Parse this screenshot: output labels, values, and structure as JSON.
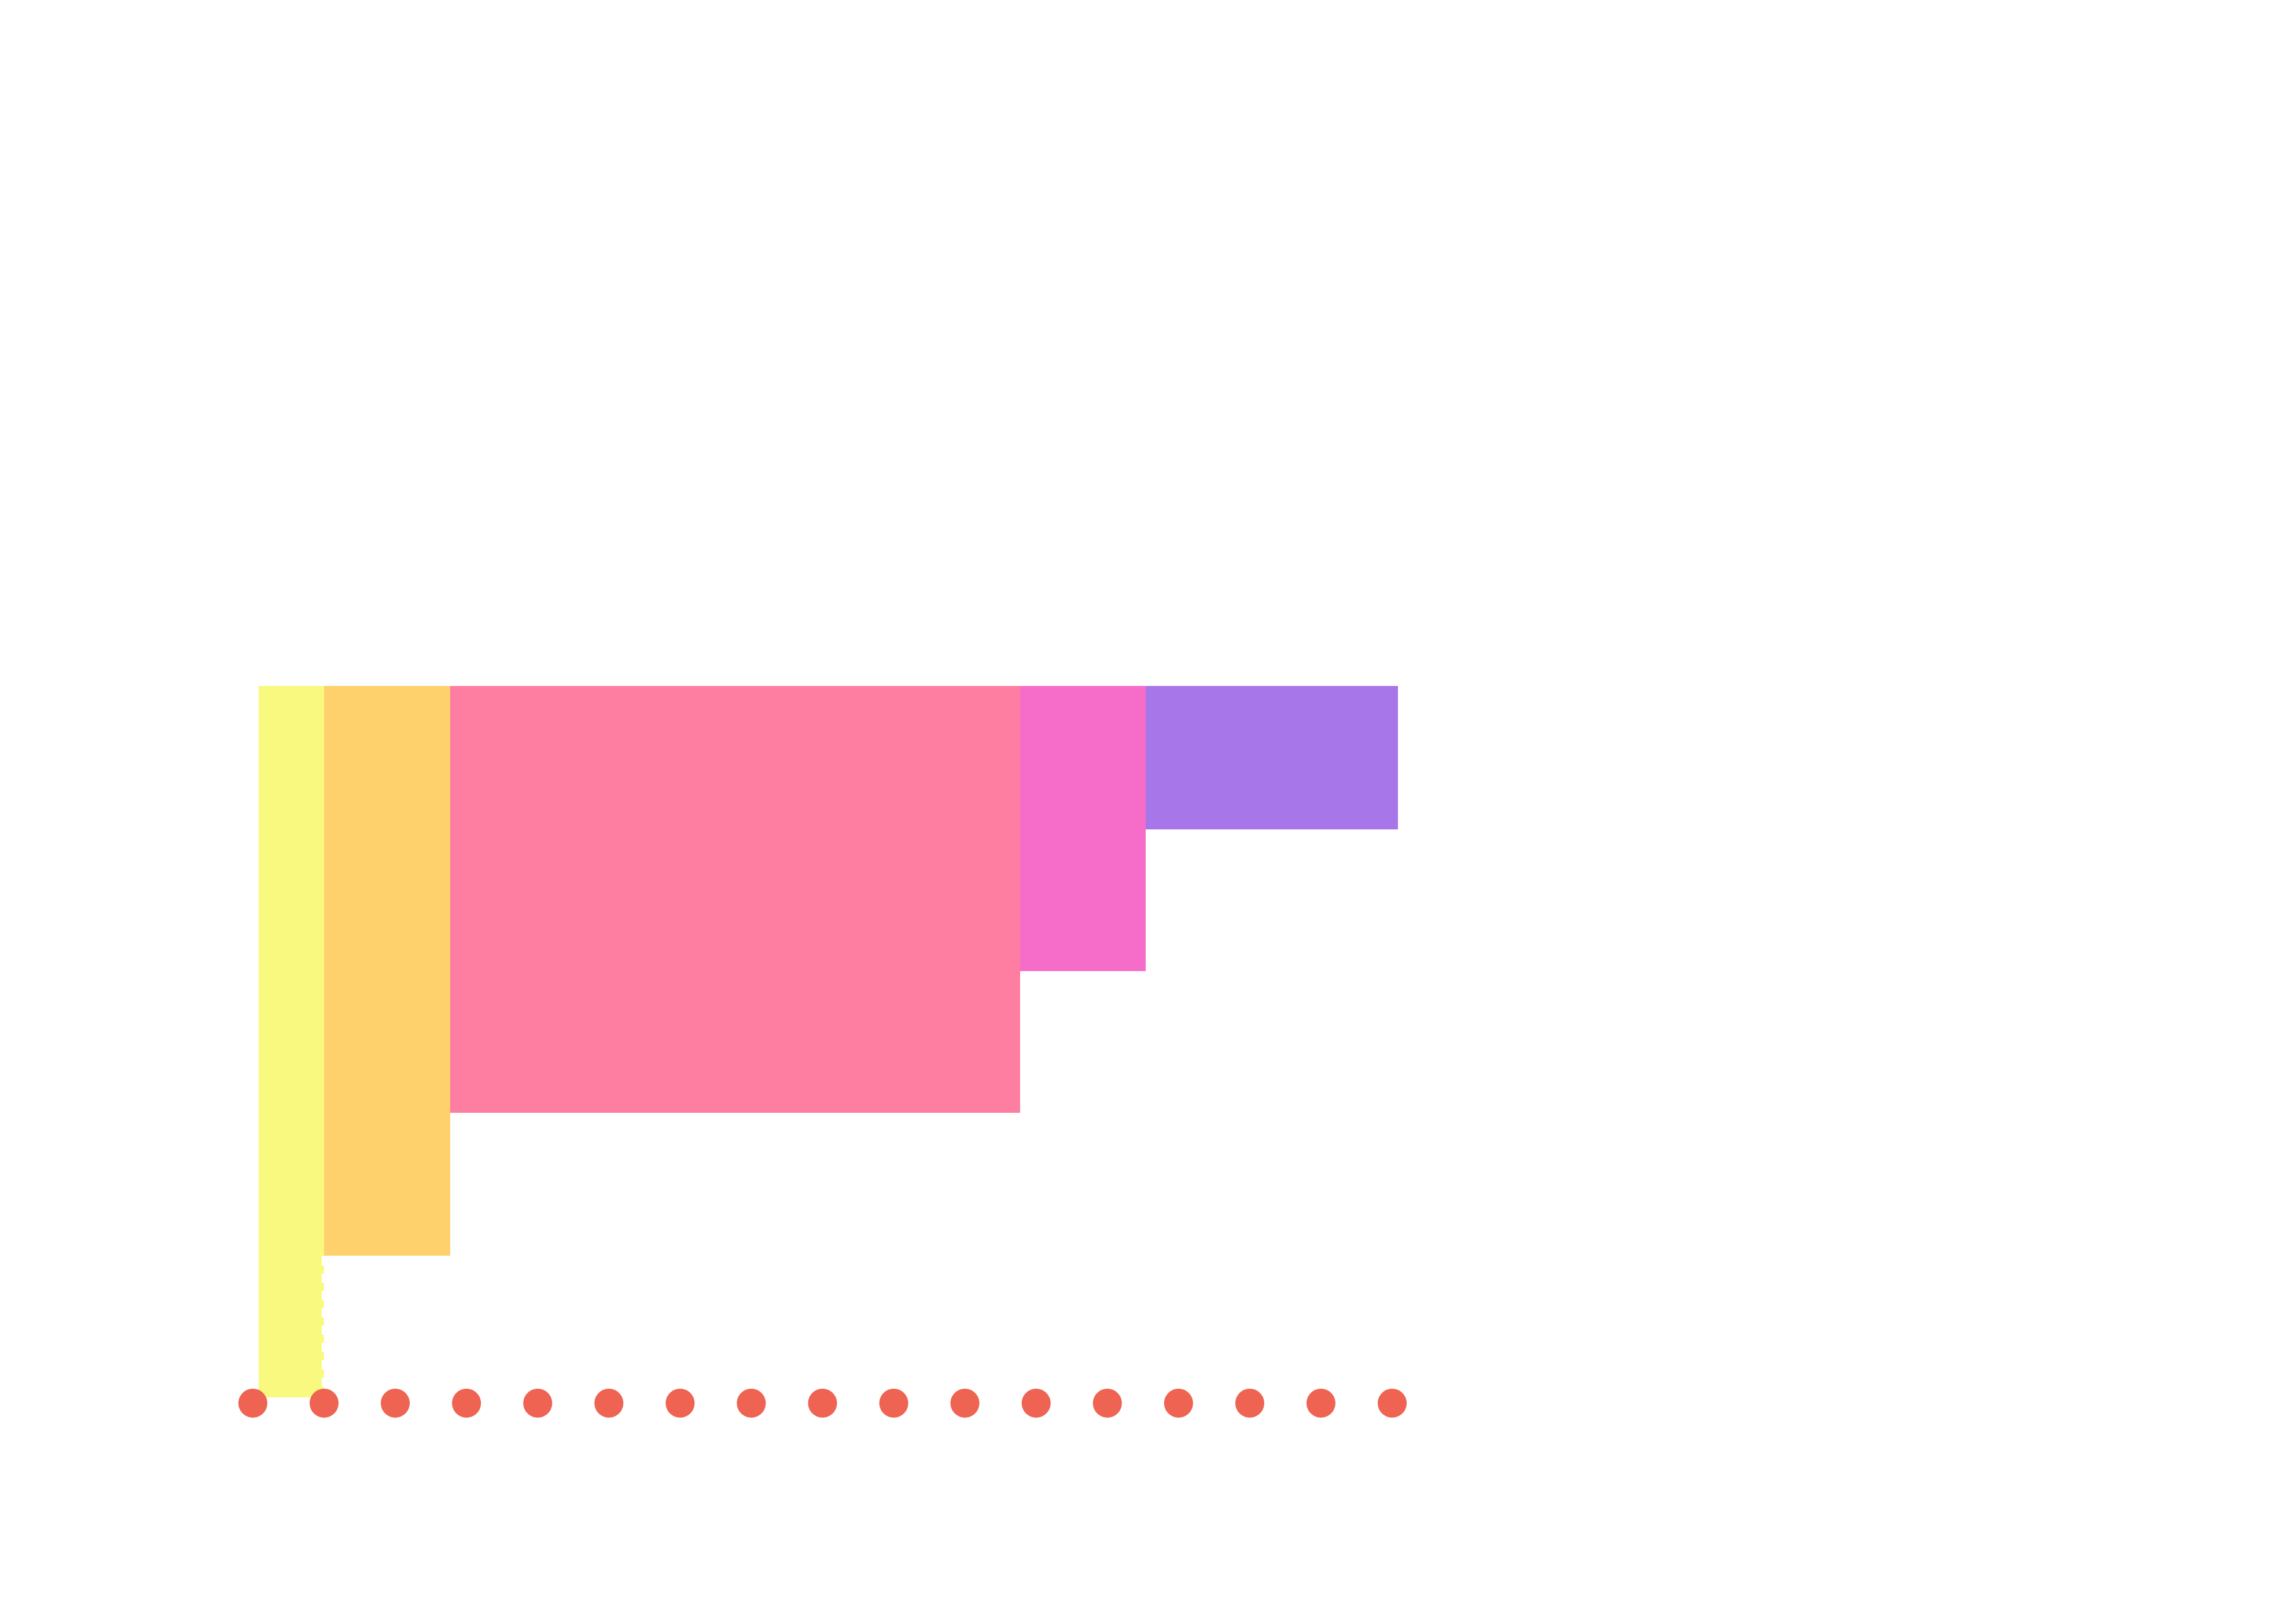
{
  "artwork": {
    "background": "#ffffff",
    "dot_color": "#ee6352",
    "dot_count": 17,
    "blocks": [
      {
        "name": "yellow-block",
        "color": "#f9f97f"
      },
      {
        "name": "orange-block",
        "color": "#fed16d"
      },
      {
        "name": "coral-pink-block",
        "color": "#fe7ea2"
      },
      {
        "name": "hot-pink-block",
        "color": "#f66dc9"
      },
      {
        "name": "purple-block",
        "color": "#a777e9"
      }
    ]
  }
}
